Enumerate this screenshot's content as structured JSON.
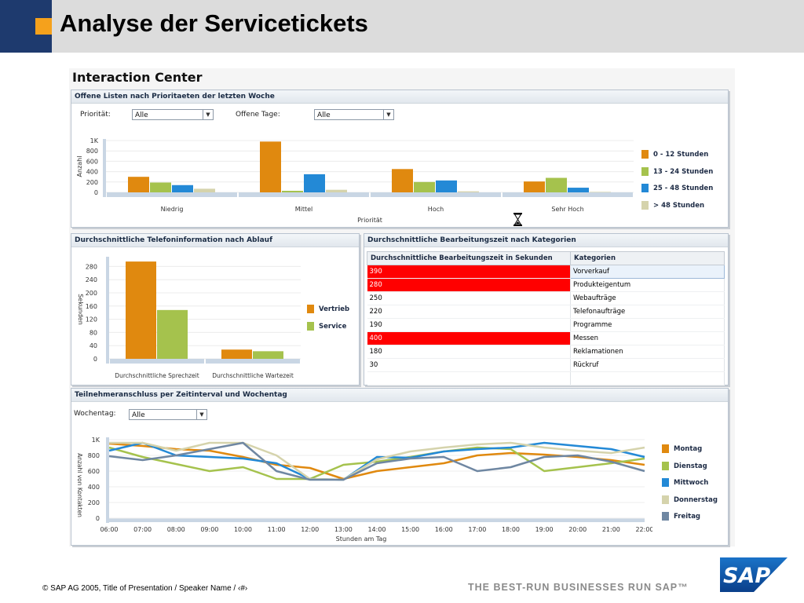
{
  "slide": {
    "title": "Analyse der Servicetickets",
    "footer": "©   SAP AG 2005, Title of Presentation / Speaker Name / ‹#›",
    "tagline": "THE BEST-RUN BUSINESSES RUN SAP™",
    "logo_text": "SAP"
  },
  "app": {
    "title": "Interaction Center"
  },
  "panel1": {
    "header": "Offene Listen nach Prioritaeten der letzten Woche",
    "priority_label": "Priorität:",
    "priority_value": "Alle",
    "days_label": "Offene Tage:",
    "days_value": "Alle"
  },
  "panel2": {
    "header": "Durchschnittliche Telefoninformation nach Ablauf"
  },
  "panel3": {
    "header": "Durchschnittliche Bearbeitungszeit nach Kategorien",
    "col1": "Durchschnittliche Bearbeitungszeit in Sekunden",
    "col2": "Kategorien",
    "rows": [
      {
        "value": "390",
        "category": "Vorverkauf",
        "flag": true
      },
      {
        "value": "280",
        "category": "Produkteigentum",
        "flag": true
      },
      {
        "value": "250",
        "category": "Webaufträge",
        "flag": false
      },
      {
        "value": "220",
        "category": "Telefonaufträge",
        "flag": false
      },
      {
        "value": "190",
        "category": "Programme",
        "flag": false
      },
      {
        "value": "400",
        "category": "Messen",
        "flag": true
      },
      {
        "value": "180",
        "category": "Reklamationen",
        "flag": false
      },
      {
        "value": "30",
        "category": "Rückruf",
        "flag": false
      }
    ]
  },
  "panel4": {
    "header": "Teilnehmeranschluss per Zeitinterval und Wochentag",
    "weekday_label": "Wochentag:",
    "weekday_value": "Alle"
  },
  "icons": {
    "busy": "hourglass-icon",
    "dropdown": "chevron-down-icon"
  },
  "chart_data": [
    {
      "type": "bar",
      "xlabel": "Priorität",
      "ylabel": "Anzahl",
      "yticks": [
        "0",
        "200",
        "400",
        "600",
        "800",
        "1K"
      ],
      "ylim": [
        0,
        1000
      ],
      "categories": [
        "Niedrig",
        "Mittel",
        "Hoch",
        "Sehr Hoch"
      ],
      "legend_position": "right",
      "series": [
        {
          "name": "0 - 12 Stunden",
          "color": "#e0890f",
          "values": [
            300,
            980,
            450,
            210
          ]
        },
        {
          "name": "13 - 24 Stunden",
          "color": "#a5c24d",
          "values": [
            190,
            30,
            200,
            280
          ]
        },
        {
          "name": "25 - 48 Stunden",
          "color": "#2389d6",
          "values": [
            140,
            350,
            230,
            90
          ]
        },
        {
          "name": "> 48 Stunden",
          "color": "#d5d3ac",
          "values": [
            70,
            50,
            20,
            10
          ]
        }
      ]
    },
    {
      "type": "bar",
      "ylabel": "Sekunden",
      "yticks": [
        "0",
        "40",
        "80",
        "120",
        "160",
        "200",
        "240",
        "280"
      ],
      "ylim": [
        0,
        300
      ],
      "categories": [
        "Durchschnittliche Sprechzeit",
        "Durchschnittliche Wartezeit"
      ],
      "legend_position": "right",
      "series": [
        {
          "name": "Vertrieb",
          "color": "#e0890f",
          "values": [
            295,
            28
          ]
        },
        {
          "name": "Service",
          "color": "#a5c24d",
          "values": [
            148,
            23
          ]
        }
      ]
    },
    {
      "type": "line",
      "xlabel": "Stunden am Tag",
      "ylabel": "Anzahl von Kontakten",
      "yticks": [
        "0",
        "200",
        "400",
        "600",
        "800",
        "1K"
      ],
      "ylim": [
        0,
        1000
      ],
      "x": [
        "06:00",
        "07:00",
        "08:00",
        "09:00",
        "10:00",
        "11:00",
        "12:00",
        "13:00",
        "14:00",
        "15:00",
        "16:00",
        "17:00",
        "18:00",
        "19:00",
        "20:00",
        "21:00",
        "22:00"
      ],
      "legend_position": "right",
      "series": [
        {
          "name": "Montag",
          "color": "#e0890f",
          "values": [
            950,
            920,
            880,
            860,
            780,
            680,
            640,
            500,
            600,
            650,
            700,
            800,
            830,
            810,
            780,
            740,
            680
          ]
        },
        {
          "name": "Dienstag",
          "color": "#a5c24d",
          "values": [
            900,
            780,
            690,
            600,
            650,
            500,
            500,
            680,
            720,
            780,
            850,
            900,
            880,
            600,
            650,
            700,
            760
          ]
        },
        {
          "name": "Mittwoch",
          "color": "#2389d6",
          "values": [
            860,
            960,
            800,
            780,
            760,
            700,
            500,
            490,
            780,
            770,
            850,
            880,
            900,
            960,
            920,
            880,
            780
          ]
        },
        {
          "name": "Donnerstag",
          "color": "#d5d3ac",
          "values": [
            960,
            960,
            860,
            960,
            960,
            800,
            500,
            490,
            750,
            850,
            900,
            940,
            960,
            900,
            860,
            830,
            900
          ]
        },
        {
          "name": "Freitag",
          "color": "#6f87a2",
          "values": [
            790,
            740,
            800,
            880,
            960,
            600,
            490,
            490,
            700,
            760,
            780,
            600,
            650,
            780,
            800,
            720,
            600
          ]
        }
      ]
    }
  ]
}
